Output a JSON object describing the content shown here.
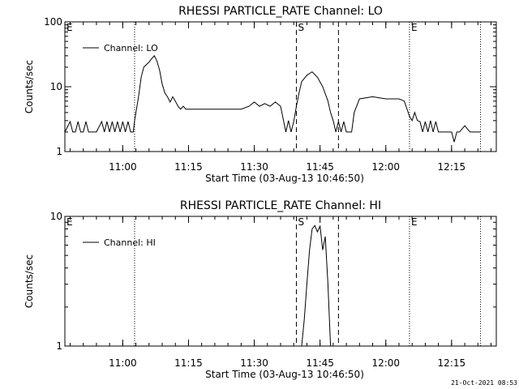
{
  "footer": {
    "timestamp": "21-Oct-2021 08:53"
  },
  "chart_data": [
    {
      "type": "line",
      "title": "RHESSI PARTICLE_RATE Channel: LO",
      "xlabel": "Start Time (03-Aug-13 10:46:50)",
      "ylabel": "Counts/sec",
      "yscale": "log",
      "ylim": [
        1,
        100
      ],
      "xlim_minutes": [
        10.78,
        12.42
      ],
      "x_tick_labels": [
        "11:00",
        "11:15",
        "11:30",
        "11:45",
        "12:00",
        "12:15"
      ],
      "x_tick_values": [
        11.0,
        11.25,
        11.5,
        11.75,
        12.0,
        12.25
      ],
      "y_tick_labels": [
        "1",
        "10",
        "100"
      ],
      "y_tick_values": [
        1,
        10,
        100
      ],
      "legend": {
        "position": "top-left",
        "entries": [
          "Channel: LO"
        ]
      },
      "markers": [
        {
          "label": "E",
          "x": 10.78,
          "style": "none"
        },
        {
          "label": "",
          "x": 11.045,
          "style": "dotted"
        },
        {
          "label": "S",
          "x": 11.66,
          "style": "dashed"
        },
        {
          "label": "",
          "x": 11.82,
          "style": "dashed"
        },
        {
          "label": "E",
          "x": 12.09,
          "style": "dotted"
        },
        {
          "label": "",
          "x": 12.36,
          "style": "dotted"
        }
      ],
      "series": [
        {
          "name": "Channel: LO",
          "x": [
            10.78,
            10.8,
            10.81,
            10.82,
            10.83,
            10.84,
            10.85,
            10.86,
            10.87,
            10.88,
            10.89,
            10.9,
            10.92,
            10.93,
            10.94,
            10.95,
            10.96,
            10.97,
            10.98,
            10.99,
            11.0,
            11.01,
            11.02,
            11.03,
            11.04,
            11.045,
            11.06,
            11.07,
            11.08,
            11.09,
            11.1,
            11.11,
            11.12,
            11.13,
            11.14,
            11.15,
            11.16,
            11.17,
            11.18,
            11.19,
            11.2,
            11.21,
            11.22,
            11.23,
            11.24,
            11.25,
            11.3,
            11.35,
            11.4,
            11.45,
            11.48,
            11.5,
            11.52,
            11.54,
            11.56,
            11.58,
            11.6,
            11.62,
            11.63,
            11.64,
            11.65,
            11.66,
            11.67,
            11.68,
            11.7,
            11.72,
            11.74,
            11.76,
            11.78,
            11.79,
            11.8,
            11.81,
            11.82,
            11.83,
            11.84,
            11.85,
            11.86,
            11.87,
            11.88,
            11.9,
            11.95,
            12.0,
            12.03,
            12.05,
            12.07,
            12.09,
            12.1,
            12.11,
            12.12,
            12.13,
            12.14,
            12.15,
            12.16,
            12.17,
            12.18,
            12.19,
            12.2,
            12.22,
            12.24,
            12.25,
            12.26,
            12.27,
            12.28,
            12.3,
            12.32,
            12.34,
            12.36
          ],
          "values": [
            2,
            2.9,
            2,
            2,
            2.9,
            2,
            2,
            2.9,
            2,
            2,
            2,
            2,
            2.9,
            2,
            2.9,
            2,
            2.9,
            2,
            2.9,
            2,
            2.9,
            2,
            2.9,
            2,
            2,
            3,
            7,
            14,
            20,
            22,
            24,
            27,
            30,
            25,
            18,
            11,
            8,
            7,
            5.8,
            7,
            6,
            5,
            4.5,
            5,
            4.5,
            4.5,
            4.5,
            4.5,
            4.5,
            4.5,
            5,
            5.8,
            5,
            5.5,
            5,
            5.8,
            5,
            2,
            3,
            2,
            2.9,
            5,
            8,
            12,
            15,
            17,
            14,
            10,
            6,
            4,
            3,
            2,
            2.9,
            2,
            2.9,
            2,
            2,
            2,
            4,
            6.5,
            7,
            6.5,
            6.5,
            6.5,
            6,
            3.5,
            3,
            4,
            3,
            2.9,
            2,
            2.9,
            2,
            3,
            2,
            2.9,
            2,
            2,
            2,
            2,
            1.4,
            2,
            2,
            2.5,
            2,
            2,
            2
          ]
        }
      ]
    },
    {
      "type": "line",
      "title": "RHESSI PARTICLE_RATE Channel: HI",
      "xlabel": "Start Time (03-Aug-13 10:46:50)",
      "ylabel": "Counts/sec",
      "yscale": "log",
      "ylim": [
        1,
        10
      ],
      "xlim_minutes": [
        10.78,
        12.42
      ],
      "x_tick_labels": [
        "11:00",
        "11:15",
        "11:30",
        "11:45",
        "12:00",
        "12:15"
      ],
      "x_tick_values": [
        11.0,
        11.25,
        11.5,
        11.75,
        12.0,
        12.25
      ],
      "y_tick_labels": [
        "1",
        "10"
      ],
      "y_tick_values": [
        1,
        10
      ],
      "legend": {
        "position": "top-left",
        "entries": [
          "Channel: HI"
        ]
      },
      "markers": [
        {
          "label": "E",
          "x": 10.78,
          "style": "none"
        },
        {
          "label": "",
          "x": 11.045,
          "style": "dotted"
        },
        {
          "label": "S",
          "x": 11.66,
          "style": "dashed"
        },
        {
          "label": "",
          "x": 11.82,
          "style": "dashed"
        },
        {
          "label": "E",
          "x": 12.09,
          "style": "dotted"
        },
        {
          "label": "",
          "x": 12.36,
          "style": "dotted"
        }
      ],
      "series": [
        {
          "name": "Channel: HI",
          "x": [
            11.68,
            11.69,
            11.7,
            11.71,
            11.72,
            11.73,
            11.74,
            11.75,
            11.76,
            11.77,
            11.78,
            11.79
          ],
          "values": [
            1,
            1.6,
            3,
            5.5,
            8,
            8.5,
            7.6,
            8.4,
            5.5,
            7,
            3,
            1
          ]
        }
      ]
    }
  ]
}
